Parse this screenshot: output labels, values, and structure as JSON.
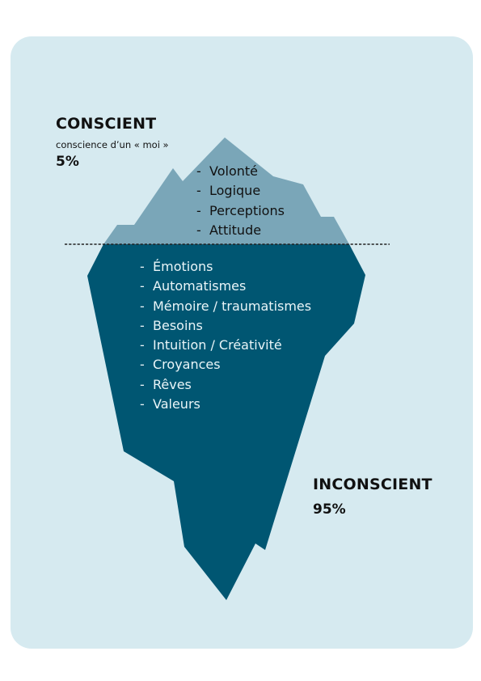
{
  "colors": {
    "background_card": "#d6eaf0",
    "iceberg_above": "#7aa6b8",
    "iceberg_below": "#005672",
    "waterline": "#222222"
  },
  "conscious": {
    "title": "CONSCIENT",
    "subtitle": "conscience d’un « moi »",
    "percent": "5%",
    "items": [
      "Volonté",
      "Logique",
      "Perceptions",
      "Attitude"
    ]
  },
  "unconscious": {
    "title": "INCONSCIENT",
    "percent": "95%",
    "items": [
      "Émotions",
      "Automatismes",
      "Mémoire / traumatismes",
      "Besoins",
      "Intuition / Créativité",
      "Croyances",
      "Rêves",
      "Valeurs"
    ]
  },
  "bullet": "-"
}
